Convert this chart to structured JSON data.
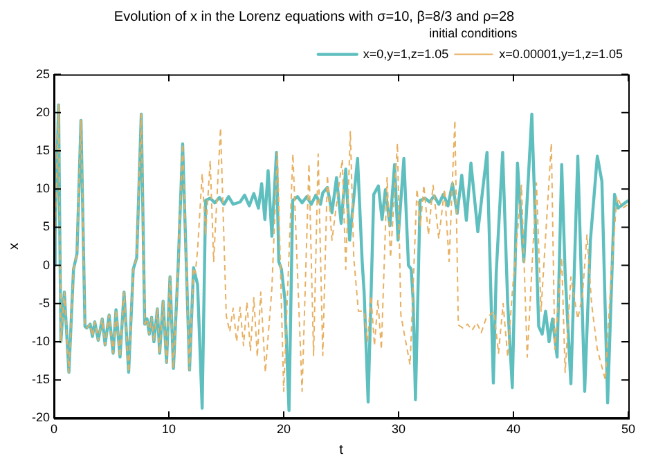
{
  "chart_data": {
    "type": "line",
    "title": "Evolution of x in the Lorenz equations with σ=10, β=8/3 and ρ=28",
    "xlabel": "t",
    "ylabel": "x",
    "legend_title": "initial conditions",
    "legend": "top right",
    "grid": false,
    "marker": "none",
    "xlim": [
      0,
      50
    ],
    "xticks": [
      0,
      10,
      20,
      30,
      40,
      50
    ],
    "ylim": [
      -20,
      25
    ],
    "yticks": [
      -20,
      -15,
      -10,
      -5,
      0,
      5,
      10,
      15,
      20,
      25
    ],
    "series": [
      {
        "name": "x=0,y=1,z=1.05",
        "color": "#5fbfbf",
        "line_style": "solid",
        "x": [
          0,
          0.1,
          0.4,
          0.6,
          0.9,
          1.3,
          1.7,
          2.0,
          2.35,
          2.7,
          2.85,
          3.15,
          3.35,
          3.55,
          3.85,
          4.2,
          4.45,
          4.8,
          5.15,
          5.4,
          5.75,
          6.1,
          6.5,
          6.9,
          7.2,
          7.6,
          7.9,
          8.1,
          8.3,
          8.5,
          8.7,
          9.0,
          9.2,
          9.5,
          9.8,
          10.1,
          10.4,
          10.8,
          11.2,
          11.8,
          12.15,
          12.5,
          12.9,
          13.2,
          13.6,
          14,
          14.4,
          14.8,
          15.2,
          15.6,
          16.2,
          16.6,
          17,
          17.4,
          17.8,
          18.08,
          18.36,
          18.64,
          18.97,
          19.37,
          19.57,
          19.8,
          20.1,
          20.46,
          20.78,
          21.2,
          21.6,
          22,
          22.4,
          22.8,
          23.2,
          23.4,
          23.8,
          24.2,
          24.6,
          25.0,
          25.4,
          25.74,
          26.43,
          26.83,
          27.0,
          27.35,
          27.84,
          28.24,
          28.56,
          28.85,
          29.25,
          29.65,
          29.95,
          30.46,
          30.86,
          31.1,
          31.26,
          31.47,
          31.87,
          32.3,
          32.7,
          33.1,
          33.5,
          33.9,
          34.3,
          34.69,
          35.1,
          35.5,
          35.9,
          36.3,
          36.9,
          37.7,
          38.25,
          38.5,
          39.06,
          39.5,
          39.9,
          40.35,
          40.9,
          41.6,
          42.2,
          42.5,
          42.8,
          43.1,
          43.4,
          43.8,
          44.2,
          44.5,
          45.0,
          45.6,
          46.2,
          46.7,
          47.3,
          47.7,
          48.2,
          48.8,
          49.1,
          50
        ],
        "values": [
          0,
          4,
          21,
          -10,
          -3.5,
          -14,
          -0.5,
          1.5,
          19,
          -8,
          -8.2,
          -7.7,
          -9.3,
          -7.4,
          -9.8,
          -7,
          -10.4,
          -6.5,
          -11.5,
          -5.8,
          -12,
          -3.5,
          -14,
          -0.5,
          1,
          19.8,
          -7.7,
          -7,
          -9,
          -6.8,
          -10,
          -5.7,
          -11.5,
          -4.7,
          -12.7,
          -1.5,
          -13.5,
          -0.5,
          15.9,
          -13.7,
          -0.3,
          -2.5,
          -18.7,
          8.5,
          8.8,
          8.2,
          8.9,
          8,
          9,
          8,
          8.3,
          9.2,
          7.8,
          9.4,
          7.5,
          10.7,
          6,
          12.4,
          3.8,
          14.8,
          0.5,
          -0.5,
          -4.4,
          -19,
          8.5,
          9,
          8.2,
          9,
          8,
          9.2,
          8,
          9.5,
          10.2,
          6.9,
          11.5,
          5.5,
          12.6,
          3.3,
          14,
          0.5,
          -3.5,
          -17.9,
          9.3,
          10.4,
          6,
          9.9,
          5.2,
          13.2,
          3.3,
          14,
          0,
          -0.5,
          -4.4,
          -17.6,
          8.5,
          8.8,
          8.3,
          9.1,
          8,
          9.3,
          7.8,
          10.7,
          6.8,
          11.8,
          5.9,
          13.4,
          4.4,
          14.8,
          -15.4,
          -1,
          14.8,
          -5,
          -16,
          13.4,
          0.5,
          19.8,
          -8,
          -9,
          -6,
          -10,
          -7,
          -12,
          13.2,
          -1,
          -15.5,
          14.3,
          -16.5,
          3.3,
          14.3,
          11,
          -18,
          9.3,
          7.5,
          8.5
        ]
      },
      {
        "name": "x=0.00001,y=1,z=1.05",
        "color": "#e8b060",
        "line_style": "dashed",
        "x": [
          0,
          0.1,
          0.4,
          0.6,
          0.9,
          1.3,
          1.7,
          2.0,
          2.35,
          2.7,
          2.85,
          3.15,
          3.35,
          3.55,
          3.85,
          4.2,
          4.45,
          4.8,
          5.15,
          5.4,
          5.75,
          6.1,
          6.5,
          6.9,
          7.2,
          7.6,
          7.9,
          8.1,
          8.3,
          8.5,
          8.7,
          9.0,
          9.2,
          9.5,
          9.8,
          10.1,
          10.4,
          10.8,
          11.2,
          11.8,
          12.15,
          12.3,
          12.5,
          12.9,
          13.2,
          13.6,
          13.9,
          14.5,
          15.0,
          15.3,
          15.6,
          15.9,
          16.2,
          16.5,
          16.8,
          17.1,
          17.4,
          17.7,
          18.0,
          18.4,
          18.97,
          19.45,
          20.0,
          20.8,
          21.6,
          22.2,
          22.6,
          23.0,
          23.4,
          23.8,
          24.2,
          25.1,
          25.4,
          25.8,
          26.1,
          26.5,
          27.0,
          27.3,
          27.6,
          27.9,
          28.2,
          28.5,
          29.0,
          29.3,
          29.9,
          30.2,
          30.5,
          31.0,
          31.6,
          31.9,
          32.2,
          32.6,
          33,
          33.5,
          34.0,
          34.4,
          34.9,
          35.2,
          35.6,
          36,
          36.4,
          36.8,
          37.2,
          37.6,
          38.3,
          38.7,
          39.1,
          39.5,
          39.9,
          40.7,
          41.2,
          42.0,
          42.4,
          43.3,
          43.6,
          44.2,
          44.5,
          45.0,
          45.6,
          46.0,
          46.4,
          46.8,
          47.3,
          48.0,
          48.5,
          49.0,
          49.5,
          50
        ],
        "values": [
          0,
          4,
          21,
          -10,
          -3.5,
          -14,
          -0.5,
          1.5,
          19,
          -8,
          -8.2,
          -7.7,
          -9.3,
          -7.4,
          -9.8,
          -7,
          -10.4,
          -6.5,
          -11.5,
          -5.8,
          -12,
          -3.5,
          -14,
          -0.5,
          1,
          19.8,
          -7.7,
          -7,
          -9,
          -6.8,
          -10,
          -5.7,
          -11.5,
          -4.7,
          -12.7,
          -1.5,
          -13.5,
          -0.5,
          15.9,
          -13.7,
          -0.3,
          -1,
          2,
          12,
          4,
          13.7,
          0.5,
          18,
          -6.6,
          -8.7,
          -5.6,
          -10,
          -5.5,
          -10.5,
          -4.8,
          -11.2,
          -4.2,
          -12,
          -3.5,
          -14,
          -3,
          14.8,
          -16.5,
          14.6,
          -16.5,
          13.3,
          -11.8,
          14.6,
          -11.8,
          11.8,
          3.3,
          13.9,
          -0.5,
          17.6,
          1,
          -6,
          -6,
          -10,
          -4,
          -10.5,
          -4.5,
          -11,
          11.5,
          1,
          16,
          -6.5,
          -9,
          -13,
          10,
          5.2,
          10.5,
          4,
          10.5,
          3.5,
          10,
          0.5,
          19,
          -7.8,
          -8.2,
          -7.7,
          -8.5,
          -7.5,
          -8.8,
          -7,
          -6,
          -11.5,
          -5,
          -12,
          -3.5,
          10.5,
          -12,
          10.8,
          -6,
          16,
          -11,
          1,
          -14,
          -1.5,
          -7,
          -4,
          4,
          -5,
          -11,
          -15,
          -1.5,
          9,
          7.5,
          8
        ]
      }
    ]
  }
}
